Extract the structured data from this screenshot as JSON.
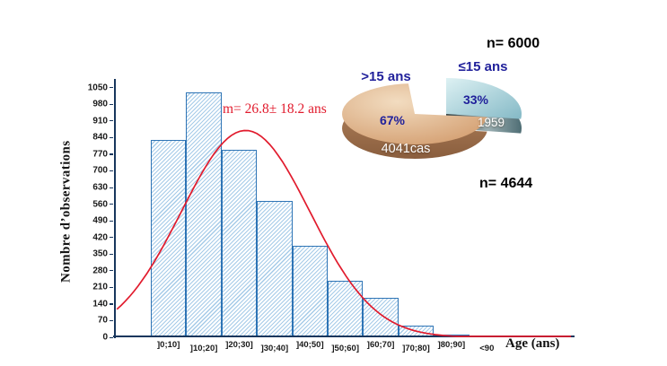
{
  "chart_data": [
    {
      "type": "bar",
      "subtype": "histogram-with-fitted-curve",
      "categories": [
        "]0;10]",
        "]10;20]",
        "]20;30]",
        "]30;40]",
        "]40;50]",
        "]50;60]",
        "]60;70]",
        "]70;80]",
        "]80;90]",
        "<90"
      ],
      "values": [
        830,
        1030,
        790,
        575,
        383,
        237,
        167,
        50,
        12,
        4
      ],
      "title": "",
      "xlabel": "Age (ans)",
      "ylabel": "Nombre d’observations",
      "ylim": [
        0,
        1050
      ],
      "ytick_step": 70,
      "grid": false,
      "legend": "none",
      "bar_border_color": "#2e74b5",
      "bar_hatch_color": "#a6cbe8",
      "axis_color": "#17365d",
      "curve": {
        "type": "gaussian",
        "mean": 26.8,
        "sd": 18.2,
        "peak": 870,
        "color": "#e11b2d",
        "annotation": "m= 26.8± 18.2 ans"
      }
    },
    {
      "type": "pie",
      "subtype": "3d-exploded",
      "annotations": {
        "n_top": "n= 6000",
        "n_bottom": "n= 4644"
      },
      "label_color": "#21219b",
      "slices": [
        {
          "label": ">15 ans",
          "value_pct": 67,
          "pct_label": "67%",
          "count_label": "4041cas",
          "top_colors": [
            "#f2dcc0",
            "#d29b6c"
          ],
          "side_colors": [
            "#b2835c",
            "#8a5e3e"
          ]
        },
        {
          "label": "≤15 ans",
          "value_pct": 33,
          "pct_label": "33%",
          "count_label": "1959",
          "top_colors": [
            "#ddf1f3",
            "#84b9c6"
          ],
          "side_colors": [
            "#333f41",
            "#9db1b4",
            "#4e6d74"
          ]
        }
      ]
    }
  ]
}
